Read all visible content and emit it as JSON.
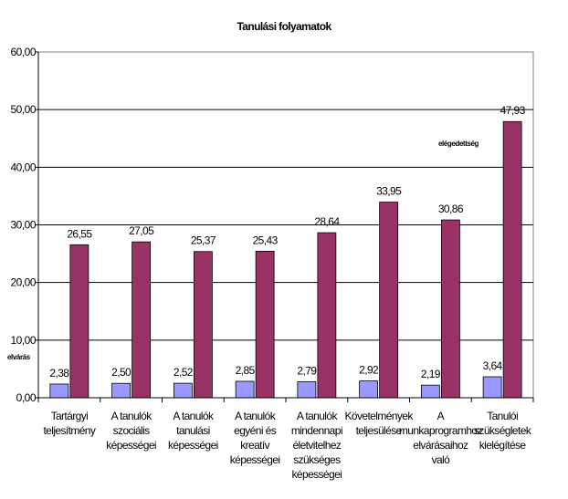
{
  "chart_data": {
    "type": "bar",
    "title": "Tanulási folyamatok",
    "categories": [
      "Tartárgyi teljesítmény",
      "A tanulók szociális képességei",
      "A tanulók tanulási képességei",
      "A tanulók egyéni és kreatív képességei",
      "A tanulók mindennapi életvitelhez szükséges képességei",
      "Követelmények teljesülése",
      "A munkaprogramhoz elvárásaihoz való",
      "Tanulói szükségletek kielégítése"
    ],
    "series": [
      {
        "name": "elvárás",
        "values": [
          2.38,
          2.5,
          2.52,
          2.85,
          2.79,
          2.92,
          2.19,
          3.64
        ],
        "labels": [
          "2,38",
          "2,50",
          "2,52",
          "2,85",
          "2,79",
          "2,92",
          "2,19",
          "3,64"
        ],
        "color": "#9999ff"
      },
      {
        "name": "elégedettség",
        "values": [
          26.55,
          27.05,
          25.37,
          25.43,
          28.64,
          33.95,
          30.86,
          47.93
        ],
        "labels": [
          "26,55",
          "27,05",
          "25,37",
          "25,43",
          "28,64",
          "33,95",
          "30,86",
          "47,93"
        ],
        "color": "#993366"
      }
    ],
    "ylim": [
      0,
      60
    ],
    "yticks": [
      "0,00",
      "10,00",
      "20,00",
      "30,00",
      "40,00",
      "50,00",
      "60,00"
    ],
    "grid": true,
    "legend": "inline"
  }
}
